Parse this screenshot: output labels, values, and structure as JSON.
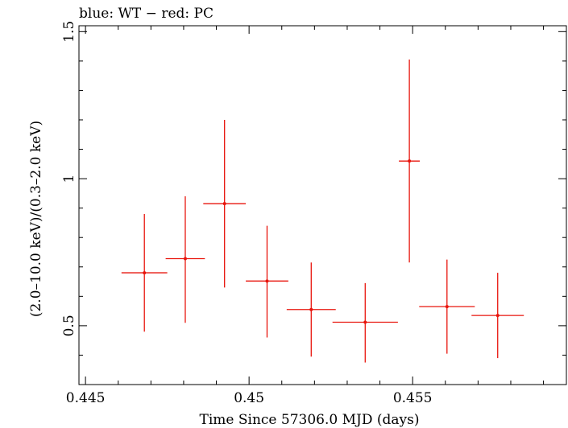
{
  "chart_data": {
    "type": "scatter",
    "title": "blue: WT − red: PC",
    "xlabel": "Time Since 57306.0 MJD (days)",
    "ylabel": "(2.0–10.0 keV)/(0.3–2.0 keV)",
    "xlim": [
      0.4448,
      0.4597
    ],
    "ylim": [
      0.3,
      1.52
    ],
    "x_ticks": [
      "0.445",
      "0.45",
      "0.455"
    ],
    "x_tick_values": [
      0.445,
      0.45,
      0.455
    ],
    "y_ticks": [
      "0.5",
      "1",
      "1.5"
    ],
    "y_tick_values": [
      0.5,
      1.0,
      1.5
    ],
    "series": [
      {
        "name": "PC",
        "color": "#e8140c",
        "points": [
          {
            "x": 0.4468,
            "xerr": 0.0007,
            "y": 0.68,
            "ylo": 0.48,
            "yhi": 0.88
          },
          {
            "x": 0.44805,
            "xerr": 0.0006,
            "y": 0.728,
            "ylo": 0.51,
            "yhi": 0.94
          },
          {
            "x": 0.44925,
            "xerr": 0.00065,
            "y": 0.915,
            "ylo": 0.63,
            "yhi": 1.2
          },
          {
            "x": 0.45055,
            "xerr": 0.00065,
            "y": 0.652,
            "ylo": 0.46,
            "yhi": 0.84
          },
          {
            "x": 0.4519,
            "xerr": 0.00075,
            "y": 0.555,
            "ylo": 0.395,
            "yhi": 0.715
          },
          {
            "x": 0.45355,
            "xerr": 0.001,
            "y": 0.512,
            "ylo": 0.375,
            "yhi": 0.645
          },
          {
            "x": 0.4549,
            "xerr": 0.00032,
            "y": 1.06,
            "ylo": 0.715,
            "yhi": 1.405
          },
          {
            "x": 0.45605,
            "xerr": 0.00085,
            "y": 0.565,
            "ylo": 0.405,
            "yhi": 0.725
          },
          {
            "x": 0.4576,
            "xerr": 0.0008,
            "y": 0.535,
            "ylo": 0.39,
            "yhi": 0.68
          }
        ]
      }
    ]
  }
}
